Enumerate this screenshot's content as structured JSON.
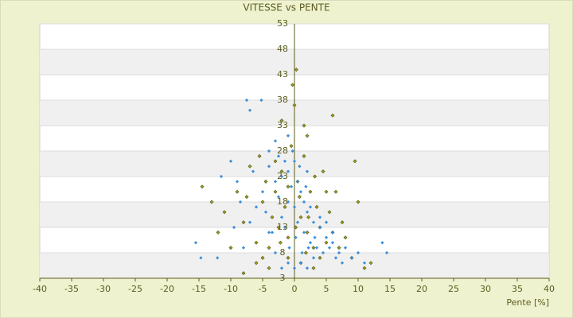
{
  "chart_data": {
    "type": "scatter",
    "title": "VITESSE vs PENTE",
    "x_label": "Pente [%]",
    "xlim": [
      -40,
      40
    ],
    "xticks": [
      -40,
      -35,
      -30,
      -25,
      -20,
      -15,
      -10,
      -5,
      0,
      5,
      10,
      15,
      20,
      25,
      30,
      35,
      40
    ],
    "ylim": [
      3,
      53
    ],
    "yticks": [
      3,
      8,
      13,
      18,
      23,
      28,
      33,
      38,
      43,
      48,
      53
    ],
    "grid": true,
    "series": [
      {
        "color": "#9a9a1c",
        "x": [
          -14.5,
          -13,
          -12,
          -11,
          -10,
          -9,
          -8,
          -7,
          -6,
          -5.5,
          -5,
          -4.5,
          -4,
          -3.5,
          -3,
          -2.5,
          -2,
          -1.5,
          -1,
          -0.5,
          -0.3,
          0,
          0.3,
          0.5,
          1,
          1.5,
          2,
          2.5,
          3,
          3.5,
          4,
          4.5,
          5,
          5.5,
          6,
          6.5,
          7,
          7.5,
          8,
          9,
          10,
          11,
          12,
          2,
          1.5,
          6,
          -2,
          -6,
          -4,
          -1,
          1,
          3,
          4,
          -3,
          -1,
          0.8,
          2.2,
          3.2,
          -2.2,
          0.2,
          5,
          -8,
          -5,
          9.5,
          -7.5,
          1.8
        ],
        "values": [
          21,
          18,
          12,
          16,
          9,
          20,
          14,
          25,
          10,
          27,
          18,
          22,
          9,
          15,
          20,
          13,
          24,
          17,
          11,
          29,
          41,
          37,
          44,
          22,
          15,
          27,
          12,
          20,
          9,
          17,
          13,
          24,
          10,
          16,
          12,
          20,
          9,
          14,
          11,
          7,
          18,
          5,
          6,
          31,
          33,
          35,
          34,
          6,
          5,
          7,
          6,
          5,
          7,
          26,
          21,
          19,
          15,
          23,
          10,
          13,
          20,
          4,
          7,
          26,
          19,
          8
        ]
      },
      {
        "color": "#3b8fd9",
        "x": [
          -15.5,
          -14.7,
          -12.1,
          -11.5,
          -7.5,
          -7,
          -5.2,
          -10,
          -9,
          -9.5,
          -8.5,
          -7,
          -6.5,
          -5,
          -4.5,
          -4,
          -3.5,
          -3,
          -2.5,
          -2,
          -1.5,
          -1,
          -0.5,
          0,
          0.5,
          1,
          1.5,
          2,
          2.5,
          3,
          3.5,
          4,
          4.5,
          5,
          5.5,
          6,
          6.5,
          7,
          8,
          9,
          10,
          11,
          13.8,
          14.5,
          -3,
          -2,
          -1,
          0,
          1,
          2,
          3,
          -4,
          -2,
          -1,
          0.5,
          1.5,
          2.5,
          4,
          -1.5,
          0.2,
          -0.8,
          1.2,
          2.2,
          3.2,
          -2.5,
          -0.3,
          0.8,
          1.8,
          5,
          6,
          7.5,
          -6,
          -4,
          -8,
          -3,
          -1,
          0,
          2
        ],
        "values": [
          10,
          7,
          7,
          23,
          38,
          36,
          38,
          26,
          22,
          13,
          18,
          14,
          24,
          20,
          16,
          28,
          12,
          22,
          19,
          15,
          26,
          18,
          21,
          17,
          14,
          20,
          12,
          16,
          10,
          14,
          9,
          13,
          8,
          11,
          9,
          10,
          7,
          8,
          9,
          7,
          8,
          6,
          10,
          8,
          8,
          5,
          6,
          5,
          6,
          5,
          7,
          25,
          23,
          24,
          22,
          18,
          17,
          15,
          13,
          11,
          9,
          8,
          9,
          11,
          27,
          28,
          25,
          21,
          14,
          12,
          6,
          17,
          12,
          9,
          30,
          31,
          26,
          24
        ]
      }
    ]
  }
}
